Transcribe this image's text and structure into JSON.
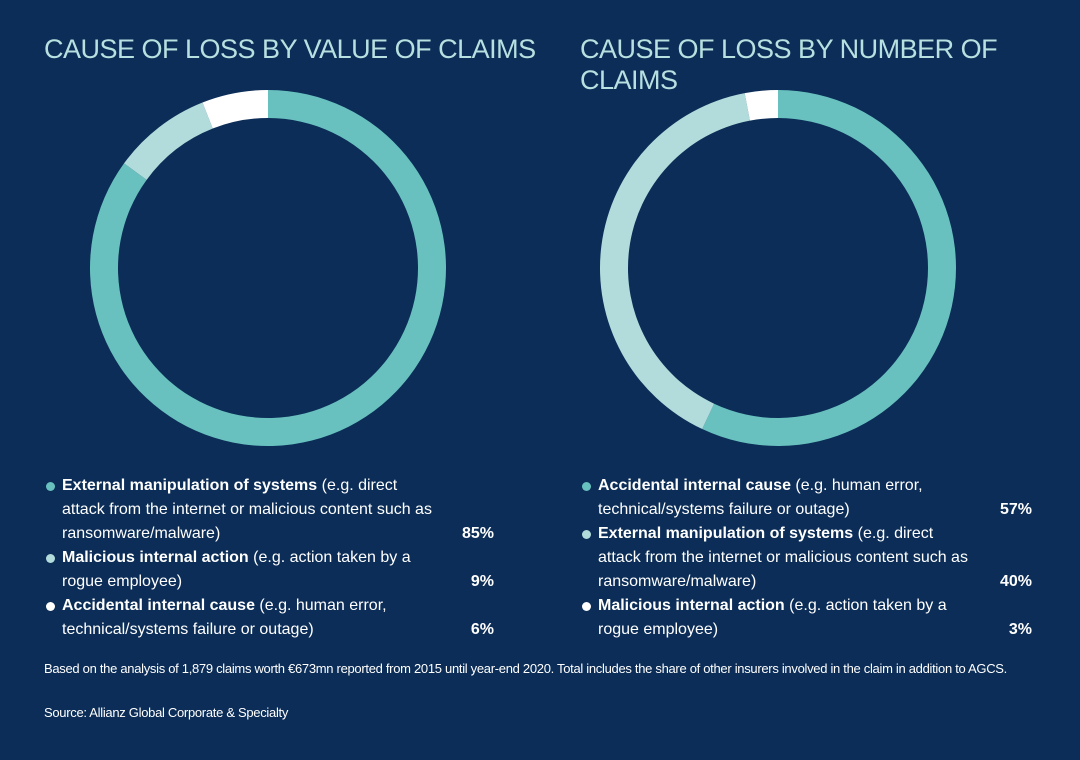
{
  "chart_data": [
    {
      "type": "pie",
      "title": "CAUSE OF LOSS BY VALUE OF CLAIMS",
      "slices": [
        {
          "label": "External manipulation of systems",
          "note": "(e.g. direct attack from the internet or malicious content such as ransomware/malware)",
          "value": 85,
          "value_label": "85%",
          "color": "#68c1bf"
        },
        {
          "label": "Malicious internal action",
          "note": "(e.g. action taken by a rogue employee)",
          "value": 9,
          "value_label": "9%",
          "color": "#b2dcdc"
        },
        {
          "label": "Accidental internal cause",
          "note": "(e.g. human error, technical/systems failure or outage)",
          "value": 6,
          "value_label": "6%",
          "color": "#ffffff"
        }
      ]
    },
    {
      "type": "pie",
      "title": "CAUSE OF LOSS BY NUMBER OF CLAIMS",
      "slices": [
        {
          "label": "Accidental internal cause",
          "note": "(e.g. human error, technical/systems failure or outage)",
          "value": 57,
          "value_label": "57%",
          "color": "#68c1bf"
        },
        {
          "label": "External manipulation of systems",
          "note": "(e.g. direct attack from the internet or malicious content such as ransomware/malware)",
          "value": 40,
          "value_label": "40%",
          "color": "#b2dcdc"
        },
        {
          "label": "Malicious internal action",
          "note": "(e.g. action taken by a rogue employee)",
          "value": 3,
          "value_label": "3%",
          "color": "#ffffff"
        }
      ]
    }
  ],
  "footnote": "Based on the analysis of 1,879 claims worth €673mn reported from 2015 until year-end 2020. Total includes the share of other insurers involved in the claim in addition to AGCS.",
  "source": "Source: Allianz Global Corporate & Specialty"
}
